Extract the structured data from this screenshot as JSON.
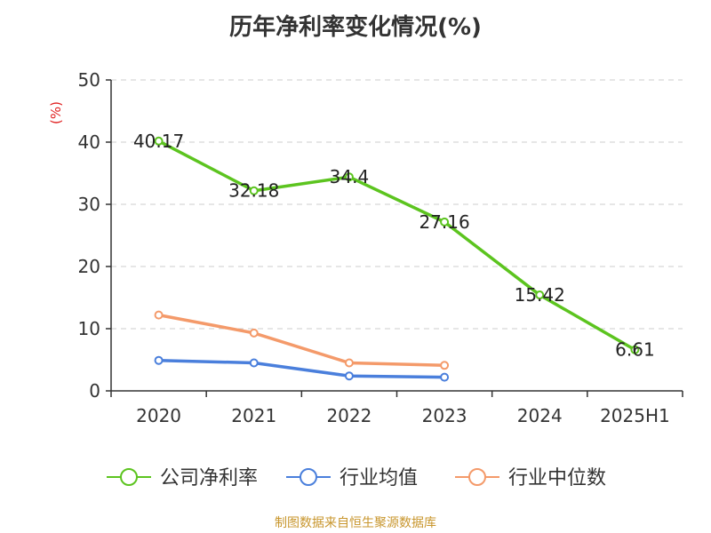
{
  "chart_data": {
    "type": "line",
    "title": "历年净利率变化情况(%)",
    "ylabel": "(%)",
    "categories": [
      "2020",
      "2021",
      "2022",
      "2023",
      "2024",
      "2025H1"
    ],
    "ylim": [
      0,
      50
    ],
    "yticks": [
      0,
      10,
      20,
      30,
      40,
      50
    ],
    "grid": true,
    "legend_position": "bottom",
    "series": [
      {
        "name": "公司净利率",
        "color": "#5cc41f",
        "values": [
          40.17,
          32.18,
          34.4,
          27.16,
          15.42,
          6.61
        ],
        "labels": [
          "40.17",
          "32.18",
          "34.4",
          "27.16",
          "15.42",
          "6.61"
        ]
      },
      {
        "name": "行业均值",
        "color": "#4a7fdc",
        "values": [
          4.9,
          4.5,
          2.4,
          2.2,
          null,
          null
        ]
      },
      {
        "name": "行业中位数",
        "color": "#f49a6a",
        "values": [
          12.2,
          9.3,
          4.5,
          4.1,
          null,
          null
        ]
      }
    ]
  },
  "source": "制图数据来自恒生聚源数据库"
}
